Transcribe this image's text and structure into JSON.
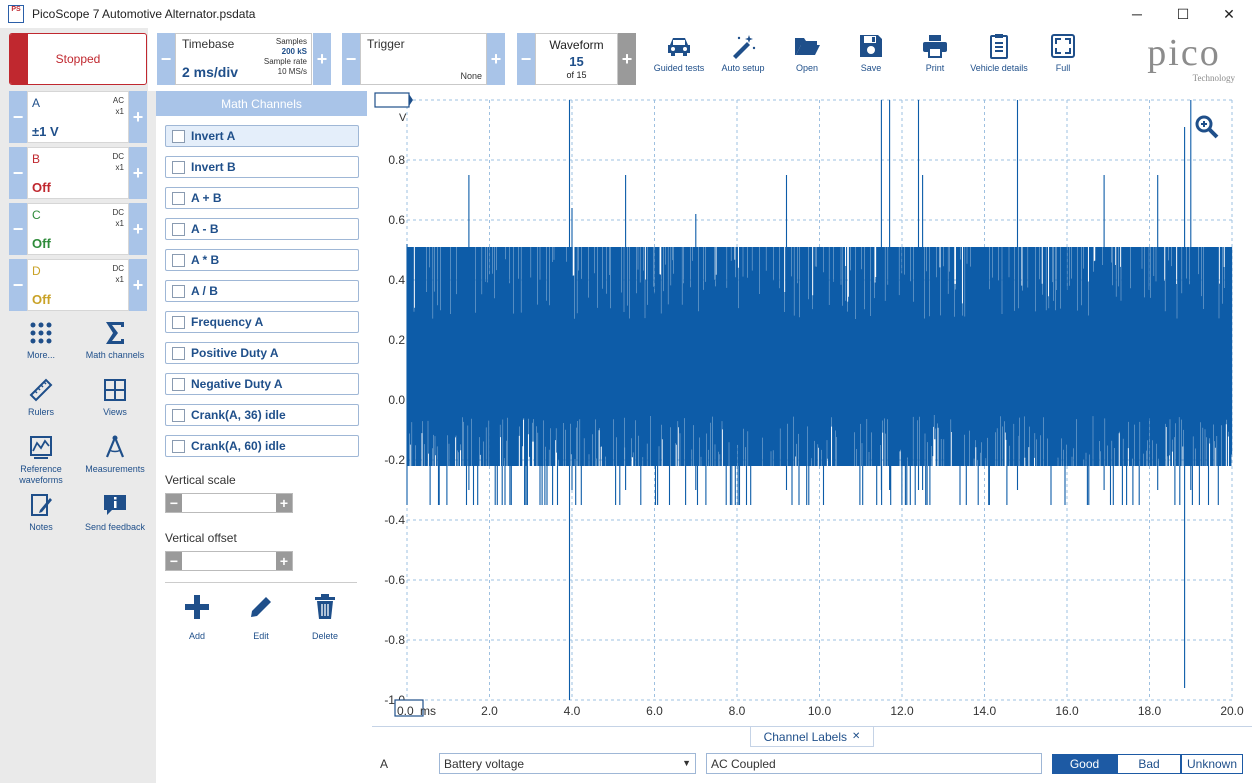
{
  "window": {
    "app_icon_text": "PS",
    "title": "PicoScope 7 Automotive Alternator.psdata",
    "minimize_glyph": "─",
    "maximize_glyph": "☐",
    "close_glyph": "✕"
  },
  "acquisition": {
    "status_label": "Stopped"
  },
  "timebase": {
    "label": "Timebase",
    "value": "2 ms/div",
    "samples_label": "Samples",
    "samples_value": "200 kS",
    "rate_label": "Sample rate",
    "rate_value": "10 MS/s"
  },
  "trigger": {
    "label": "Trigger",
    "mode": "None"
  },
  "waveform": {
    "label": "Waveform",
    "index": "15",
    "of_total": "of 15"
  },
  "toolbar": {
    "guided_tests": "Guided tests",
    "auto_setup": "Auto setup",
    "open": "Open",
    "save": "Save",
    "print": "Print",
    "vehicle_details": "Vehicle details",
    "full": "Full"
  },
  "brand": {
    "logo_word": "pico",
    "logo_sub": "Technology"
  },
  "channels": [
    {
      "letter": "A",
      "coupling": "AC",
      "probe": "x1",
      "range": "±1 V",
      "color": "#1f4f8a"
    },
    {
      "letter": "B",
      "coupling": "DC",
      "probe": "x1",
      "range": "Off",
      "color": "#c0282f"
    },
    {
      "letter": "C",
      "coupling": "DC",
      "probe": "x1",
      "range": "Off",
      "color": "#2e8b3a"
    },
    {
      "letter": "D",
      "coupling": "DC",
      "probe": "x1",
      "range": "Off",
      "color": "#c9a227"
    }
  ],
  "side_tools": {
    "more": "More...",
    "math_channels": "Math channels",
    "rulers": "Rulers",
    "views": "Views",
    "reference_waveforms": "Reference waveforms",
    "measurements": "Measurements",
    "notes": "Notes",
    "send_feedback": "Send feedback"
  },
  "math_panel": {
    "header": "Math Channels",
    "items": [
      "Invert A",
      "Invert B",
      "A + B",
      "A - B",
      "A * B",
      "A / B",
      "Frequency A",
      "Positive Duty A",
      "Negative Duty A",
      "Crank(A, 36) idle",
      "Crank(A, 60) idle"
    ],
    "vertical_scale_label": "Vertical scale",
    "vertical_offset_label": "Vertical offset",
    "add_label": "Add",
    "edit_label": "Edit",
    "delete_label": "Delete"
  },
  "scope": {
    "y_ticks": [
      "1.0",
      "0.8",
      "0.6",
      "0.4",
      "0.2",
      "0.0",
      "-0.2",
      "-0.4",
      "-0.6",
      "-0.8",
      "-1.0"
    ],
    "y_unit": "V",
    "x_ticks": [
      "0.0",
      "2.0",
      "4.0",
      "6.0",
      "8.0",
      "10.0",
      "12.0",
      "14.0",
      "16.0",
      "18.0",
      "20.0"
    ],
    "x_unit": "ms",
    "trace_color": "#0d5ca8",
    "signal": {
      "band_high": 0.51,
      "band_low": -0.22,
      "mid_high": 0.27,
      "mid_low": -0.05,
      "x_end_ms": 20.0
    }
  },
  "channel_labels": {
    "tab_label": "Channel Labels",
    "close_glyph": "✕",
    "channel": "A",
    "label_select": "Battery voltage",
    "description": "AC Coupled",
    "good": "Good",
    "bad": "Bad",
    "unknown": "Unknown",
    "select_color": "#1d5aa4"
  }
}
